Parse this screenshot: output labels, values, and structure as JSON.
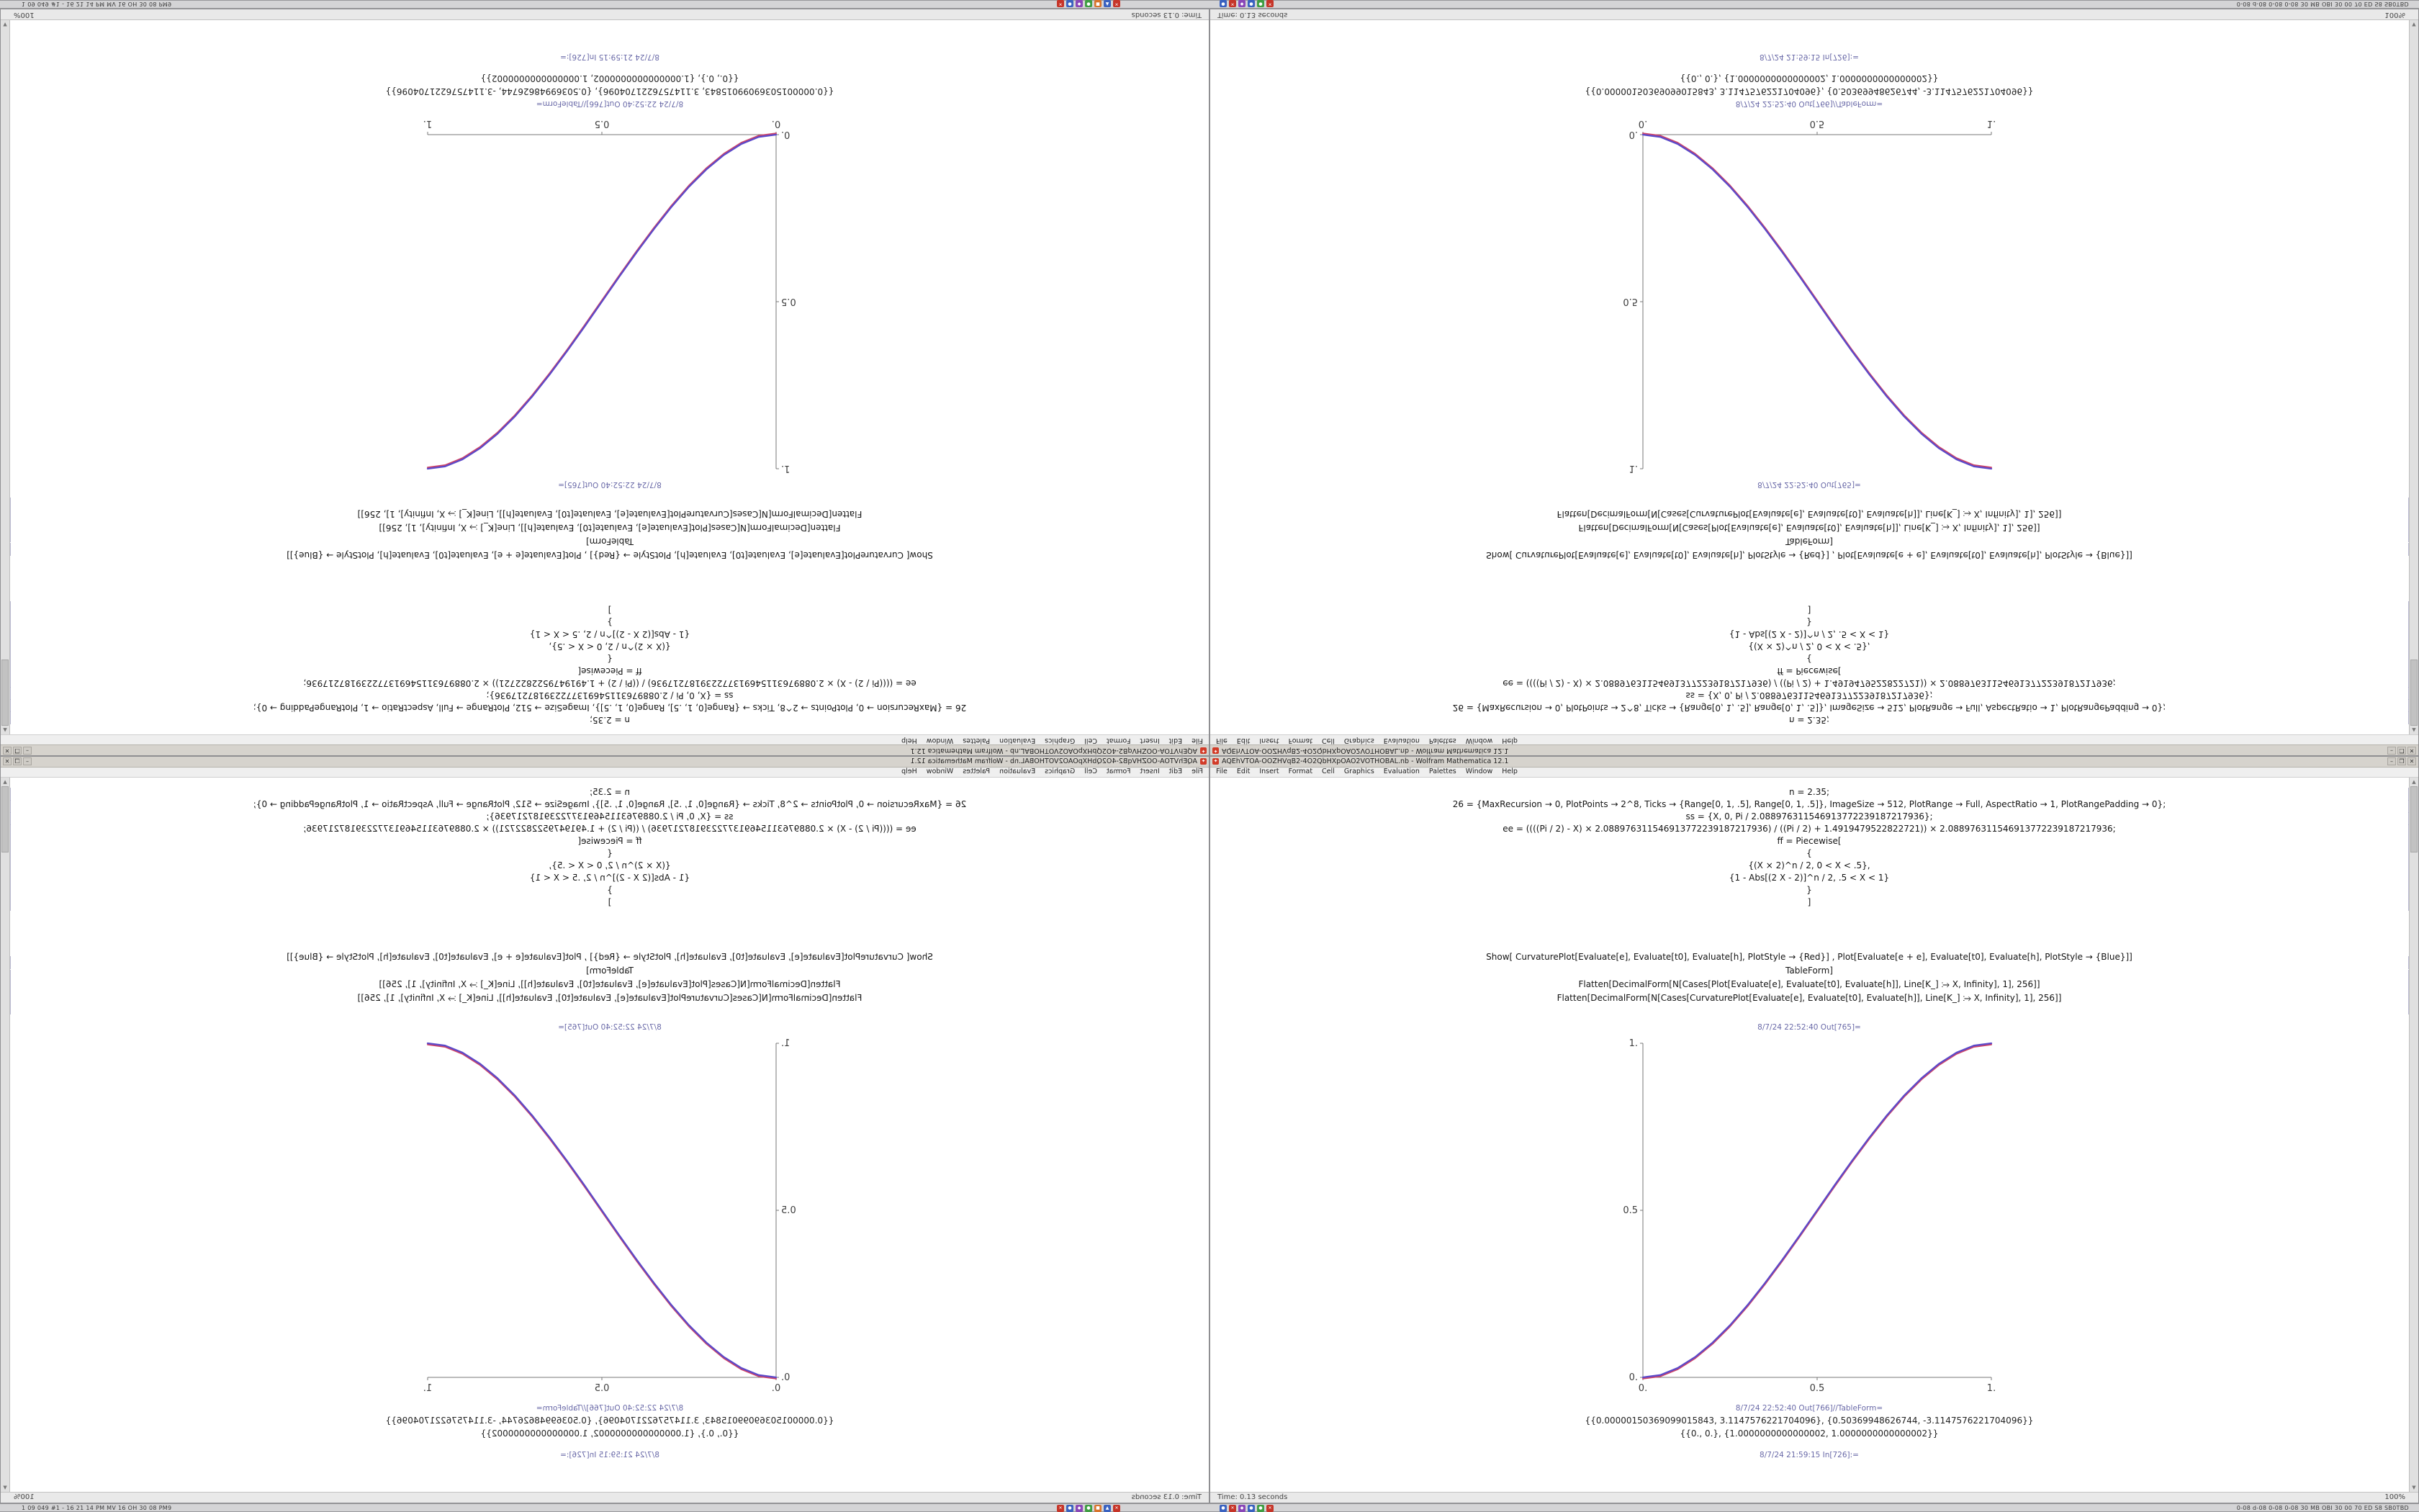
{
  "taskbar": {
    "left_text": "1 09 049 #1 - 16 21 14 PM MV 16 OH 30 08 PM9",
    "right_text": "0-08 d-08 0-08 0-08 30 MB OBI 30 00 70 ED S8 SB0TBD",
    "icon_groups": [
      {
        "name": "app-group-1",
        "icons": [
          {
            "name": "app-icon-red-1",
            "color": "#c63428",
            "glyph": "✕"
          },
          {
            "name": "app-icon-blue-1",
            "color": "#3a62c0",
            "glyph": "●"
          },
          {
            "name": "app-icon-purple-1",
            "color": "#8a47b8",
            "glyph": "◆"
          },
          {
            "name": "app-icon-green-1",
            "color": "#3f9e43",
            "glyph": "●"
          },
          {
            "name": "app-icon-orange-1",
            "color": "#d8742c",
            "glyph": "■"
          },
          {
            "name": "app-icon-blue-2",
            "color": "#3a62c0",
            "glyph": "▲"
          },
          {
            "name": "app-icon-red-2",
            "color": "#c63428",
            "glyph": "✕"
          }
        ]
      },
      {
        "name": "app-group-2",
        "icons": [
          {
            "name": "app-icon-blue-3",
            "color": "#3a62c0",
            "glyph": "●"
          },
          {
            "name": "app-icon-red-3",
            "color": "#c63428",
            "glyph": "✕"
          },
          {
            "name": "app-icon-purple-2",
            "color": "#8a47b8",
            "glyph": "◆"
          },
          {
            "name": "app-icon-blue-4",
            "color": "#3a62c0",
            "glyph": "●"
          },
          {
            "name": "app-icon-green-2",
            "color": "#3f9e43",
            "glyph": "●"
          },
          {
            "name": "app-icon-red-4",
            "color": "#c63428",
            "glyph": "✕"
          }
        ]
      }
    ]
  },
  "notebook": {
    "title": "AQEhVTOA-OOZHVqB2-4O2QbHXpOAO2VOTHOBAL.nb - Wolfram Mathematica 12.1",
    "app_icon_glyph": "✦",
    "window_buttons": {
      "minimize": "–",
      "maximize": "❐",
      "close": "✕"
    },
    "menu": [
      "File",
      "Edit",
      "Insert",
      "Format",
      "Cell",
      "Graphics",
      "Evaluation",
      "Palettes",
      "Window",
      "Help"
    ],
    "inputs_block1": [
      "n = 2.35;",
      "26 = {MaxRecursion → 0, PlotPoints → 2^8, Ticks → {Range[0, 1, .5], Range[0, 1, .5]}, ImageSize → 512, PlotRange → Full, AspectRatio → 1, PlotRangePadding → 0};",
      "ss = {X, 0, Pi / 2.088976311546913772239187217936};",
      "ee = ((((Pi / 2) - X) × 2.088976311546913772239187217936) / ((Pi / 2) + 1.4919479522822721)) × 2.088976311546913772239187217936;",
      "ff = Piecewise[",
      "{",
      "{(X × 2)^n / 2, 0 < X < .5},",
      "{1 - Abs[(2 X - 2)]^n / 2, .5 < X < 1}",
      "}",
      "]"
    ],
    "inputs_block2": [
      "Show[ CurvaturePlot[Evaluate[e], Evaluate[t0], Evaluate[h], PlotStyle → {Red}] , Plot[Evaluate[e + e], Evaluate[t0], Evaluate[h], PlotStyle → {Blue}]]",
      "TableForm]",
      "Flatten[DecimalForm[N[Cases[Plot[Evaluate[e], Evaluate[t0], Evaluate[h]], Line[K_] ⧴ X, Infinity], 1], 256]]",
      "Flatten[DecimalForm[N[Cases[CurvaturePlot[Evaluate[e], Evaluate[t0], Evaluate[h]], Line[K_] ⧴ X, Infinity], 1], 256]]"
    ],
    "out_plot_label": "8/7/24 22:52:40 Out[765]=",
    "out_table_label": "8/7/24 22:52:40 Out[766]//TableForm=",
    "outputs": [
      "{{0.00000150369099015843, 3.1147576221704096}, {0.50369948626744, -3.1147576221704096}}",
      "{{0., 0.}, {1.0000000000000002, 1.0000000000000002}}"
    ],
    "last_in_label": "8/7/24 21:59:15 In[726]:=",
    "status_time": "Time: 0.13 seconds",
    "magnification": "100%"
  },
  "chart_data": {
    "type": "line",
    "title": "",
    "xlabel": "",
    "ylabel": "",
    "xlim": [
      0,
      1
    ],
    "ylim": [
      0,
      1
    ],
    "xticks": [
      "0.",
      "0.5",
      "1."
    ],
    "yticks": [
      "0.",
      "0.5",
      "1."
    ],
    "grid": false,
    "legend": false,
    "x": [
      0,
      0.05,
      0.1,
      0.15,
      0.2,
      0.25,
      0.3,
      0.35,
      0.4,
      0.45,
      0.5,
      0.55,
      0.6,
      0.65,
      0.7,
      0.75,
      0.8,
      0.85,
      0.9,
      0.95,
      1
    ],
    "series": [
      {
        "name": "Plot (Blue)",
        "color": "#5b49c9",
        "values": [
          0,
          0.007,
          0.028,
          0.061,
          0.104,
          0.156,
          0.216,
          0.282,
          0.352,
          0.425,
          0.5,
          0.575,
          0.648,
          0.718,
          0.784,
          0.844,
          0.896,
          0.939,
          0.972,
          0.993,
          1
        ]
      },
      {
        "name": "CurvaturePlot (Red)",
        "color": "#cf4468",
        "values": [
          0,
          0.007,
          0.028,
          0.061,
          0.104,
          0.156,
          0.216,
          0.282,
          0.352,
          0.425,
          0.5,
          0.575,
          0.648,
          0.718,
          0.784,
          0.844,
          0.896,
          0.939,
          0.972,
          0.993,
          1
        ]
      }
    ]
  },
  "quadrants": [
    {
      "name": "screen-top-left",
      "transform": "rotate-180"
    },
    {
      "name": "screen-top-right",
      "transform": "flip-vertical"
    },
    {
      "name": "screen-bottom-left",
      "transform": "flip-horizontal"
    },
    {
      "name": "screen-bottom-right",
      "transform": "none"
    }
  ],
  "colors": {
    "curve_blue": "#5b49c9",
    "curve_red": "#cf4468",
    "cell_label": "#6a6aa8",
    "titlebar": "#d6d3cd",
    "taskbar": "#d4d4d6",
    "app_icon_red": "#d23b28"
  }
}
